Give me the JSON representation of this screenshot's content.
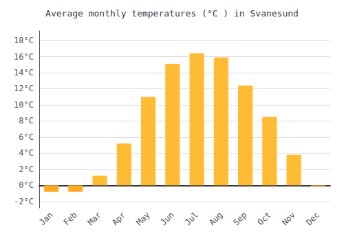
{
  "chart_data": {
    "type": "bar",
    "title": "Average monthly temperatures (°C ) in Svanesund",
    "categories": [
      "Jan",
      "Feb",
      "Mar",
      "Apr",
      "May",
      "Jun",
      "Jul",
      "Aug",
      "Sep",
      "Oct",
      "Nov",
      "Dec"
    ],
    "values": [
      -0.8,
      -0.8,
      1.2,
      5.2,
      11.0,
      15.1,
      16.4,
      15.9,
      12.4,
      8.5,
      3.8,
      -0.1
    ],
    "colors": [
      "#FFAA22",
      "#FFAA22",
      "#FFBB33",
      "#FFBB33",
      "#FFBB33",
      "#FFBB33",
      "#FFBB33",
      "#FFBB33",
      "#FFBB33",
      "#FFBB33",
      "#FFBB33",
      "#FFAA22"
    ],
    "ylim": [
      -2.8,
      19.2
    ],
    "yticks": [
      {
        "value": -2,
        "label": "-2°C"
      },
      {
        "value": 0,
        "label": "0°C"
      },
      {
        "value": 2,
        "label": "2°C"
      },
      {
        "value": 4,
        "label": "4°C"
      },
      {
        "value": 6,
        "label": "6°C"
      },
      {
        "value": 8,
        "label": "8°C"
      },
      {
        "value": 10,
        "label": "10°C"
      },
      {
        "value": 12,
        "label": "12°C"
      },
      {
        "value": 14,
        "label": "14°C"
      },
      {
        "value": 16,
        "label": "16°C"
      },
      {
        "value": 18,
        "label": "18°C"
      }
    ],
    "grid": true
  }
}
